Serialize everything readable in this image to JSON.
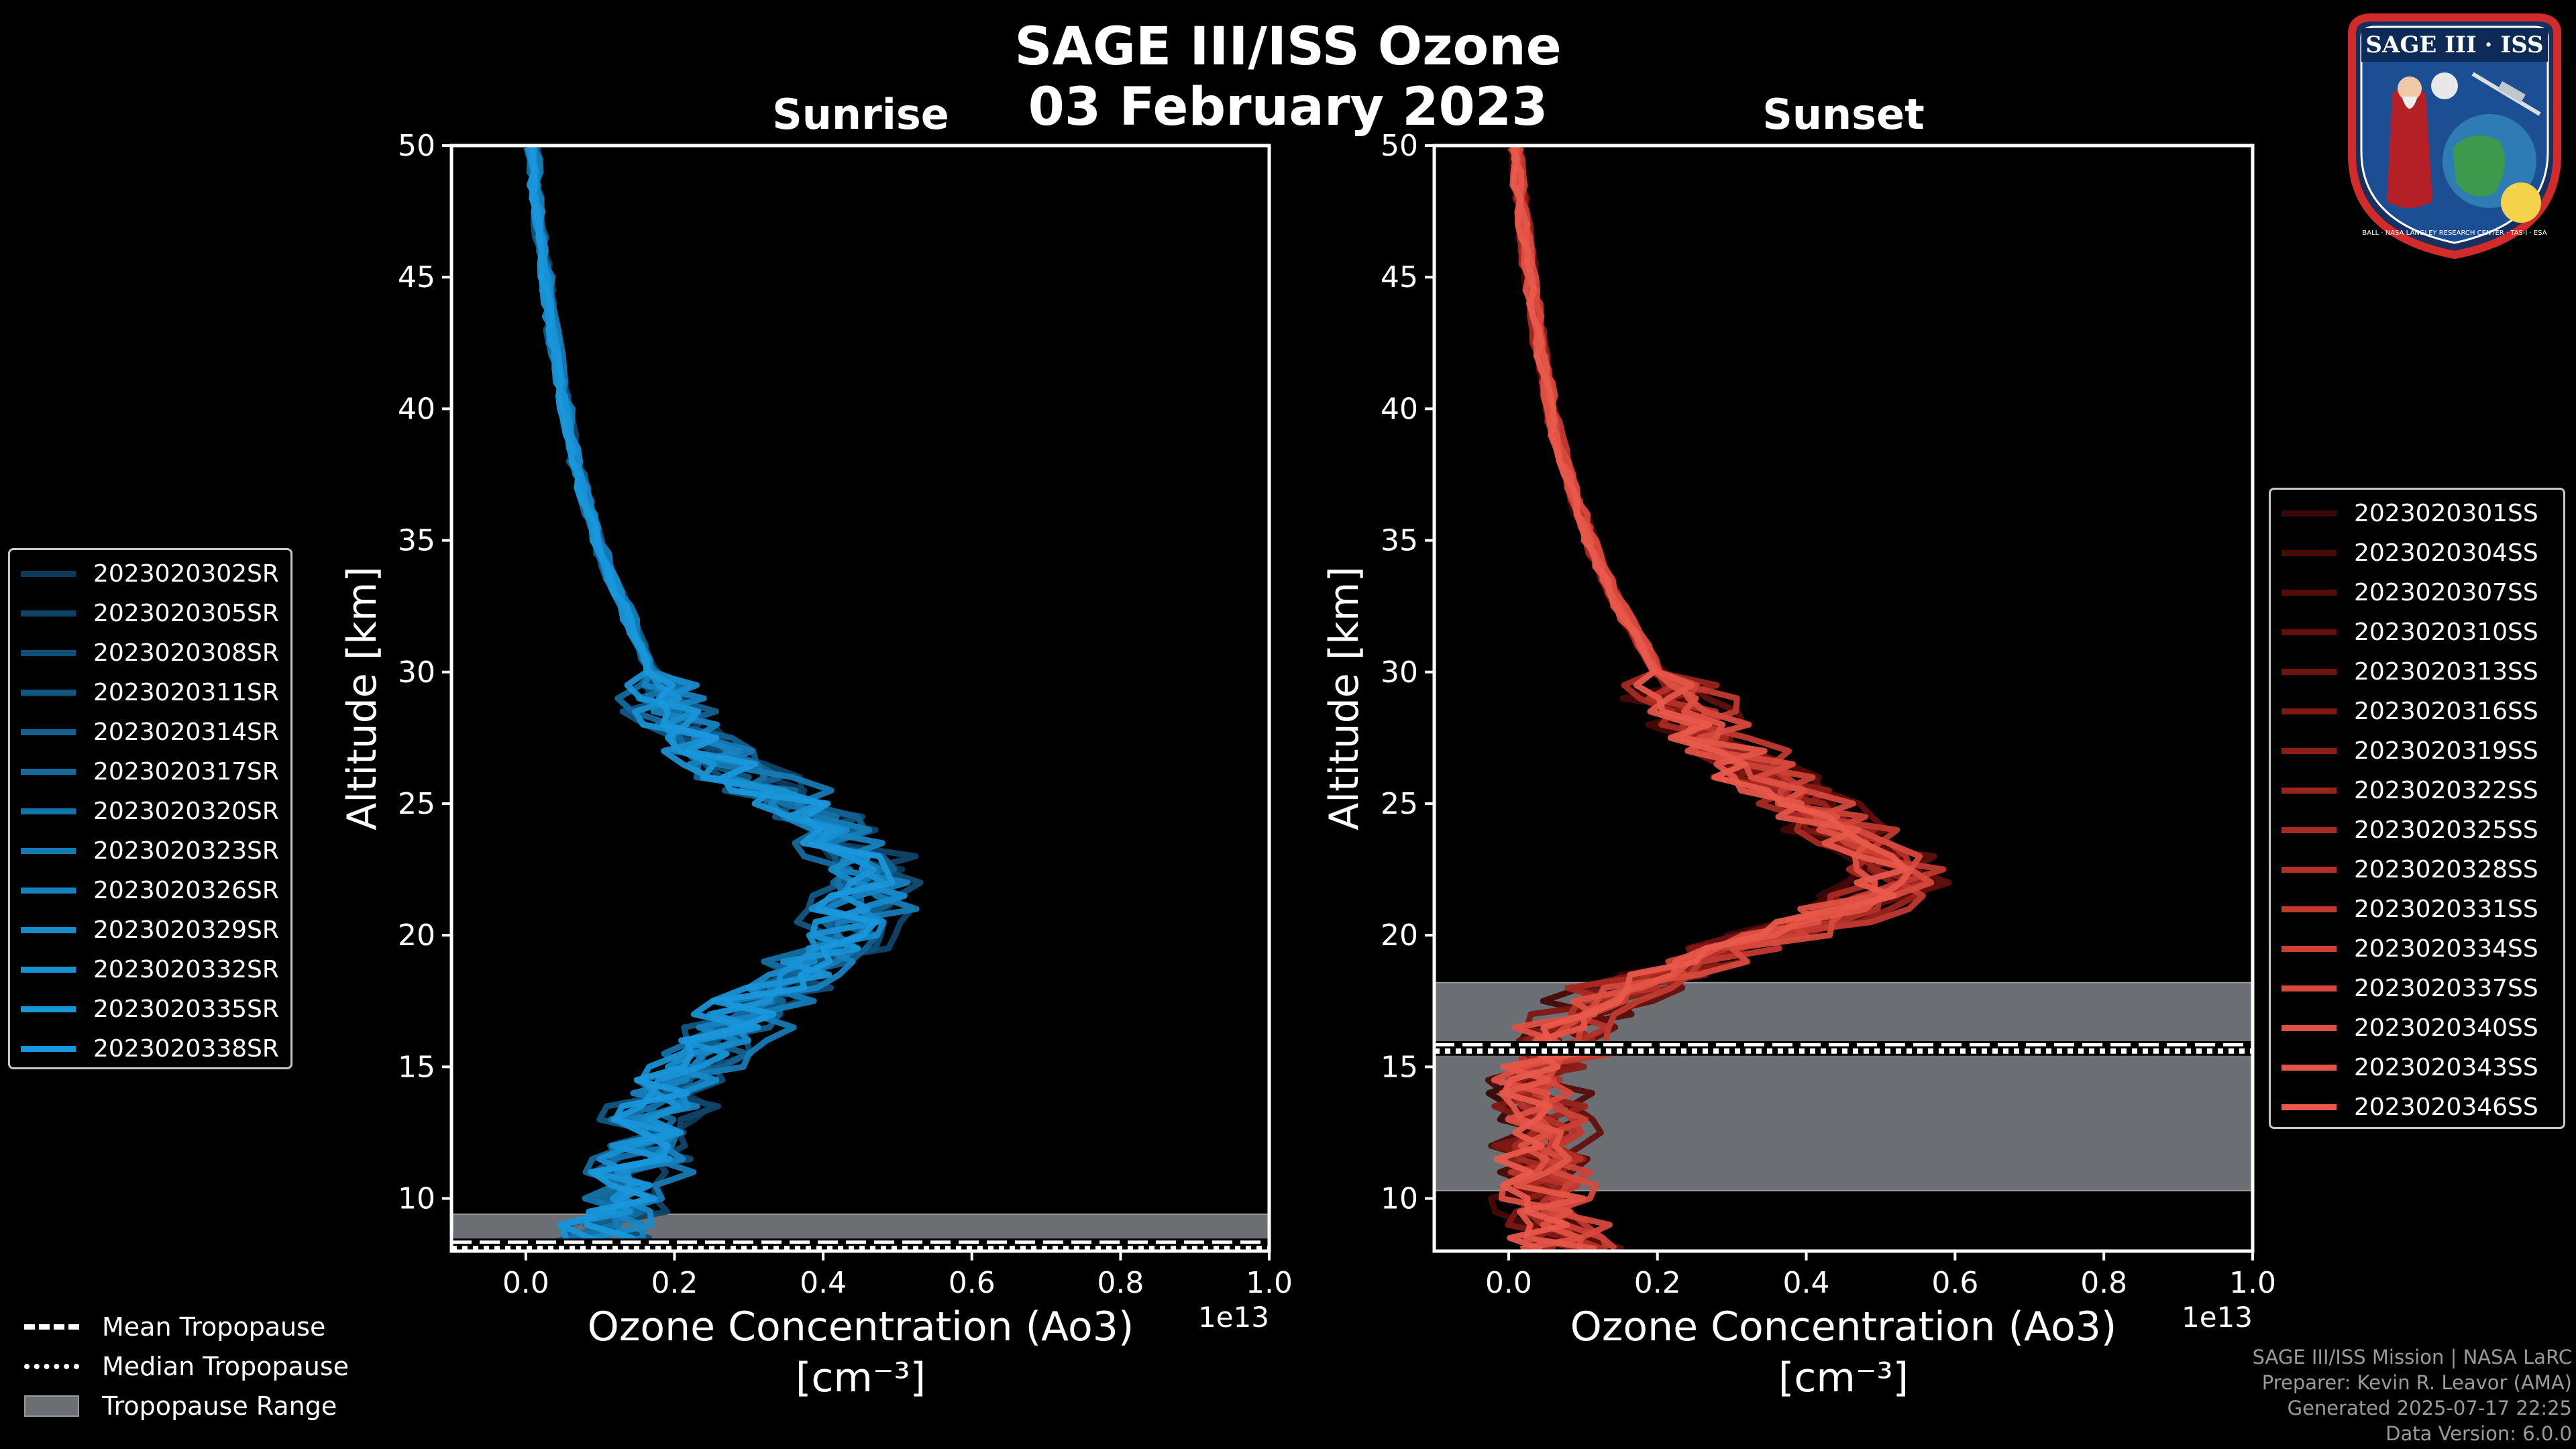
{
  "header": {
    "title_line1": "SAGE III/ISS Ozone",
    "title_line2": "03 February 2023"
  },
  "logo": {
    "text": "SAGE III · ISS",
    "ring_text": "BALL · NASA LANGLEY RESEARCH CENTER · TAS-I · ESA"
  },
  "credits": {
    "line1": "SAGE III/ISS Mission | NASA LaRC",
    "line2": "Preparer: Kevin R. Leavor (AMA)",
    "line3": "Generated 2025-07-17 22:25",
    "line4": "Data Version: 6.0.0"
  },
  "tropopause_legend": {
    "mean": "Mean Tropopause",
    "median": "Median Tropopause",
    "range": "Tropopause Range"
  },
  "colors": {
    "sunrise": "#1a8fd0",
    "sunset": "#e8584a",
    "tropopause_fill": "#6b6e72"
  },
  "chart_data": [
    {
      "type": "line",
      "panel": "sunrise",
      "title": "Sunrise",
      "xlabel": "Ozone Concentration (Ao3)",
      "xunit": "[cm⁻³]",
      "ylabel": "Altitude [km]",
      "x_scale_label": "1e13",
      "xlim": [
        -0.1,
        1.0
      ],
      "ylim": [
        8,
        50
      ],
      "xticks": [
        "0.0",
        "0.2",
        "0.4",
        "0.6",
        "0.8",
        "1.0"
      ],
      "yticks": [
        "10",
        "15",
        "20",
        "25",
        "30",
        "35",
        "40",
        "45",
        "50"
      ],
      "tropopause": {
        "mean": 8.3,
        "median": 8.1,
        "range": [
          8.0,
          9.4
        ]
      },
      "reference_profile": {
        "altitude_km": [
          8,
          9,
          10,
          11,
          12,
          13,
          14,
          15,
          16,
          17,
          18,
          19,
          20,
          21,
          22,
          23,
          24,
          25,
          26,
          27,
          28,
          29,
          30,
          31,
          32,
          33,
          34,
          35,
          36,
          37,
          38,
          39,
          40,
          42,
          44,
          46,
          48,
          50
        ],
        "ozone_1e13": [
          0.1,
          0.12,
          0.14,
          0.15,
          0.17,
          0.18,
          0.2,
          0.22,
          0.26,
          0.3,
          0.35,
          0.4,
          0.43,
          0.46,
          0.47,
          0.45,
          0.42,
          0.37,
          0.3,
          0.25,
          0.21,
          0.19,
          0.17,
          0.155,
          0.14,
          0.125,
          0.11,
          0.098,
          0.087,
          0.077,
          0.068,
          0.06,
          0.053,
          0.042,
          0.032,
          0.023,
          0.015,
          0.009
        ]
      },
      "series": [
        {
          "name": "2023020302SR",
          "color": "#0d3a5a"
        },
        {
          "name": "2023020305SR",
          "color": "#0f4468"
        },
        {
          "name": "2023020308SR",
          "color": "#104e76"
        },
        {
          "name": "2023020311SR",
          "color": "#115783"
        },
        {
          "name": "2023020314SR",
          "color": "#126190"
        },
        {
          "name": "2023020317SR",
          "color": "#136a9d"
        },
        {
          "name": "2023020320SR",
          "color": "#1473a9"
        },
        {
          "name": "2023020323SR",
          "color": "#157bb5"
        },
        {
          "name": "2023020326SR",
          "color": "#1683c0"
        },
        {
          "name": "2023020329SR",
          "color": "#178aca"
        },
        {
          "name": "2023020332SR",
          "color": "#1890d2"
        },
        {
          "name": "2023020335SR",
          "color": "#1894d8"
        },
        {
          "name": "2023020338SR",
          "color": "#1997dc"
        }
      ]
    },
    {
      "type": "line",
      "panel": "sunset",
      "title": "Sunset",
      "xlabel": "Ozone Concentration (Ao3)",
      "xunit": "[cm⁻³]",
      "ylabel": "Altitude [km]",
      "x_scale_label": "1e13",
      "xlim": [
        -0.1,
        1.0
      ],
      "ylim": [
        8,
        50
      ],
      "xticks": [
        "0.0",
        "0.2",
        "0.4",
        "0.6",
        "0.8",
        "1.0"
      ],
      "yticks": [
        "10",
        "15",
        "20",
        "25",
        "30",
        "35",
        "40",
        "45",
        "50"
      ],
      "tropopause": {
        "mean": 15.8,
        "median": 15.6,
        "range": [
          10.3,
          18.2
        ]
      },
      "reference_profile": {
        "altitude_km": [
          8,
          9,
          10,
          11,
          12,
          13,
          14,
          15,
          16,
          17,
          18,
          19,
          20,
          21,
          22,
          23,
          24,
          25,
          26,
          27,
          28,
          29,
          30,
          31,
          32,
          33,
          34,
          35,
          36,
          37,
          38,
          39,
          40,
          42,
          44,
          46,
          48,
          50
        ],
        "ozone_1e13": [
          0.08,
          0.07,
          0.06,
          0.05,
          0.05,
          0.05,
          0.05,
          0.05,
          0.07,
          0.1,
          0.16,
          0.26,
          0.36,
          0.46,
          0.53,
          0.5,
          0.45,
          0.4,
          0.35,
          0.3,
          0.26,
          0.23,
          0.2,
          0.18,
          0.16,
          0.14,
          0.125,
          0.11,
          0.097,
          0.085,
          0.074,
          0.065,
          0.057,
          0.045,
          0.034,
          0.025,
          0.017,
          0.01
        ]
      },
      "series": [
        {
          "name": "2023020301SS",
          "color": "#3a0805"
        },
        {
          "name": "2023020304SS",
          "color": "#470a07"
        },
        {
          "name": "2023020307SS",
          "color": "#550d09"
        },
        {
          "name": "2023020310SS",
          "color": "#62100c"
        },
        {
          "name": "2023020313SS",
          "color": "#70140f"
        },
        {
          "name": "2023020316SS",
          "color": "#7e1813"
        },
        {
          "name": "2023020319SS",
          "color": "#8c1d17"
        },
        {
          "name": "2023020322SS",
          "color": "#9a231c"
        },
        {
          "name": "2023020325SS",
          "color": "#a82a22"
        },
        {
          "name": "2023020328SS",
          "color": "#b53128"
        },
        {
          "name": "2023020331SS",
          "color": "#c1392f"
        },
        {
          "name": "2023020334SS",
          "color": "#cc4136"
        },
        {
          "name": "2023020337SS",
          "color": "#d6493d"
        },
        {
          "name": "2023020340SS",
          "color": "#de5043"
        },
        {
          "name": "2023020343SS",
          "color": "#e45548"
        },
        {
          "name": "2023020346SS",
          "color": "#e8594c"
        }
      ]
    }
  ]
}
